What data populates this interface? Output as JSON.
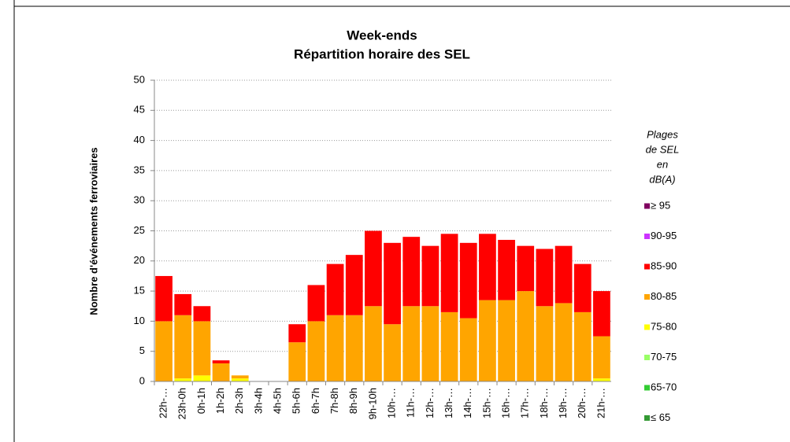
{
  "chart_data": {
    "type": "stacked_bar",
    "title": "Week-ends",
    "subtitle": "Répartition horaire des SEL",
    "y_label": "Nombre d'événements ferroviaires",
    "legend_title": [
      "Plages",
      "de SEL",
      "en",
      "dB(A)"
    ],
    "categories": [
      "22h-…",
      "23h-0h",
      "0h-1h",
      "1h-2h",
      "2h-3h",
      "3h-4h",
      "4h-5h",
      "5h-6h",
      "6h-7h",
      "7h-8h",
      "8h-9h",
      "9h-10h",
      "10h-…",
      "11h-…",
      "12h-…",
      "13h-…",
      "14h-…",
      "15h-…",
      "16h-…",
      "17h-…",
      "18h-…",
      "19h-…",
      "20h-…",
      "21h-…"
    ],
    "series": [
      {
        "name": "≥ 95",
        "color": "#800060",
        "values": [
          0,
          0,
          0,
          0,
          0,
          0,
          0,
          0,
          0,
          0,
          0,
          0,
          0,
          0,
          0,
          0,
          0,
          0,
          0,
          0,
          0,
          0,
          0,
          0
        ]
      },
      {
        "name": "90-95",
        "color": "#cc33ff",
        "values": [
          0,
          0,
          0,
          0,
          0,
          0,
          0,
          0,
          0,
          0,
          0,
          0,
          0,
          0,
          0,
          0,
          0,
          0,
          0,
          0,
          0,
          0,
          0,
          0
        ]
      },
      {
        "name": "85-90",
        "color": "#ff0000",
        "values": [
          7.5,
          3.5,
          2.5,
          0.5,
          0,
          0,
          0,
          3,
          6,
          8.5,
          10,
          12.5,
          13.5,
          11.5,
          10,
          13,
          12.5,
          11,
          10,
          7.5,
          9.5,
          9.5,
          8,
          7.5
        ]
      },
      {
        "name": "80-85",
        "color": "#ffa500",
        "values": [
          10,
          10.5,
          9,
          3,
          0.5,
          0,
          0,
          6.5,
          10,
          11,
          11,
          12.5,
          9.5,
          12.5,
          12.5,
          11.5,
          10.5,
          13.5,
          13.5,
          15,
          12.5,
          13,
          11.5,
          7
        ]
      },
      {
        "name": "75-80",
        "color": "#ffff00",
        "values": [
          0,
          0.5,
          1,
          0,
          0.5,
          0,
          0,
          0,
          0,
          0,
          0,
          0,
          0,
          0,
          0,
          0,
          0,
          0,
          0,
          0,
          0,
          0,
          0,
          0.5
        ]
      },
      {
        "name": "70-75",
        "color": "#99ff66",
        "values": [
          0,
          0,
          0,
          0,
          0,
          0,
          0,
          0,
          0,
          0,
          0,
          0,
          0,
          0,
          0,
          0,
          0,
          0,
          0,
          0,
          0,
          0,
          0,
          0
        ]
      },
      {
        "name": "65-70",
        "color": "#33cc33",
        "values": [
          0,
          0,
          0,
          0,
          0,
          0,
          0,
          0,
          0,
          0,
          0,
          0,
          0,
          0,
          0,
          0,
          0,
          0,
          0,
          0,
          0,
          0,
          0,
          0
        ]
      },
      {
        "name": "≤  65",
        "color": "#339933",
        "values": [
          0,
          0,
          0,
          0,
          0,
          0,
          0,
          0,
          0,
          0,
          0,
          0,
          0,
          0,
          0,
          0,
          0,
          0,
          0,
          0,
          0,
          0,
          0,
          0
        ]
      }
    ],
    "ylim": [
      0,
      50
    ],
    "yticks": [
      0,
      5,
      10,
      15,
      20,
      25,
      30,
      35,
      40,
      45,
      50
    ],
    "grid": true
  }
}
